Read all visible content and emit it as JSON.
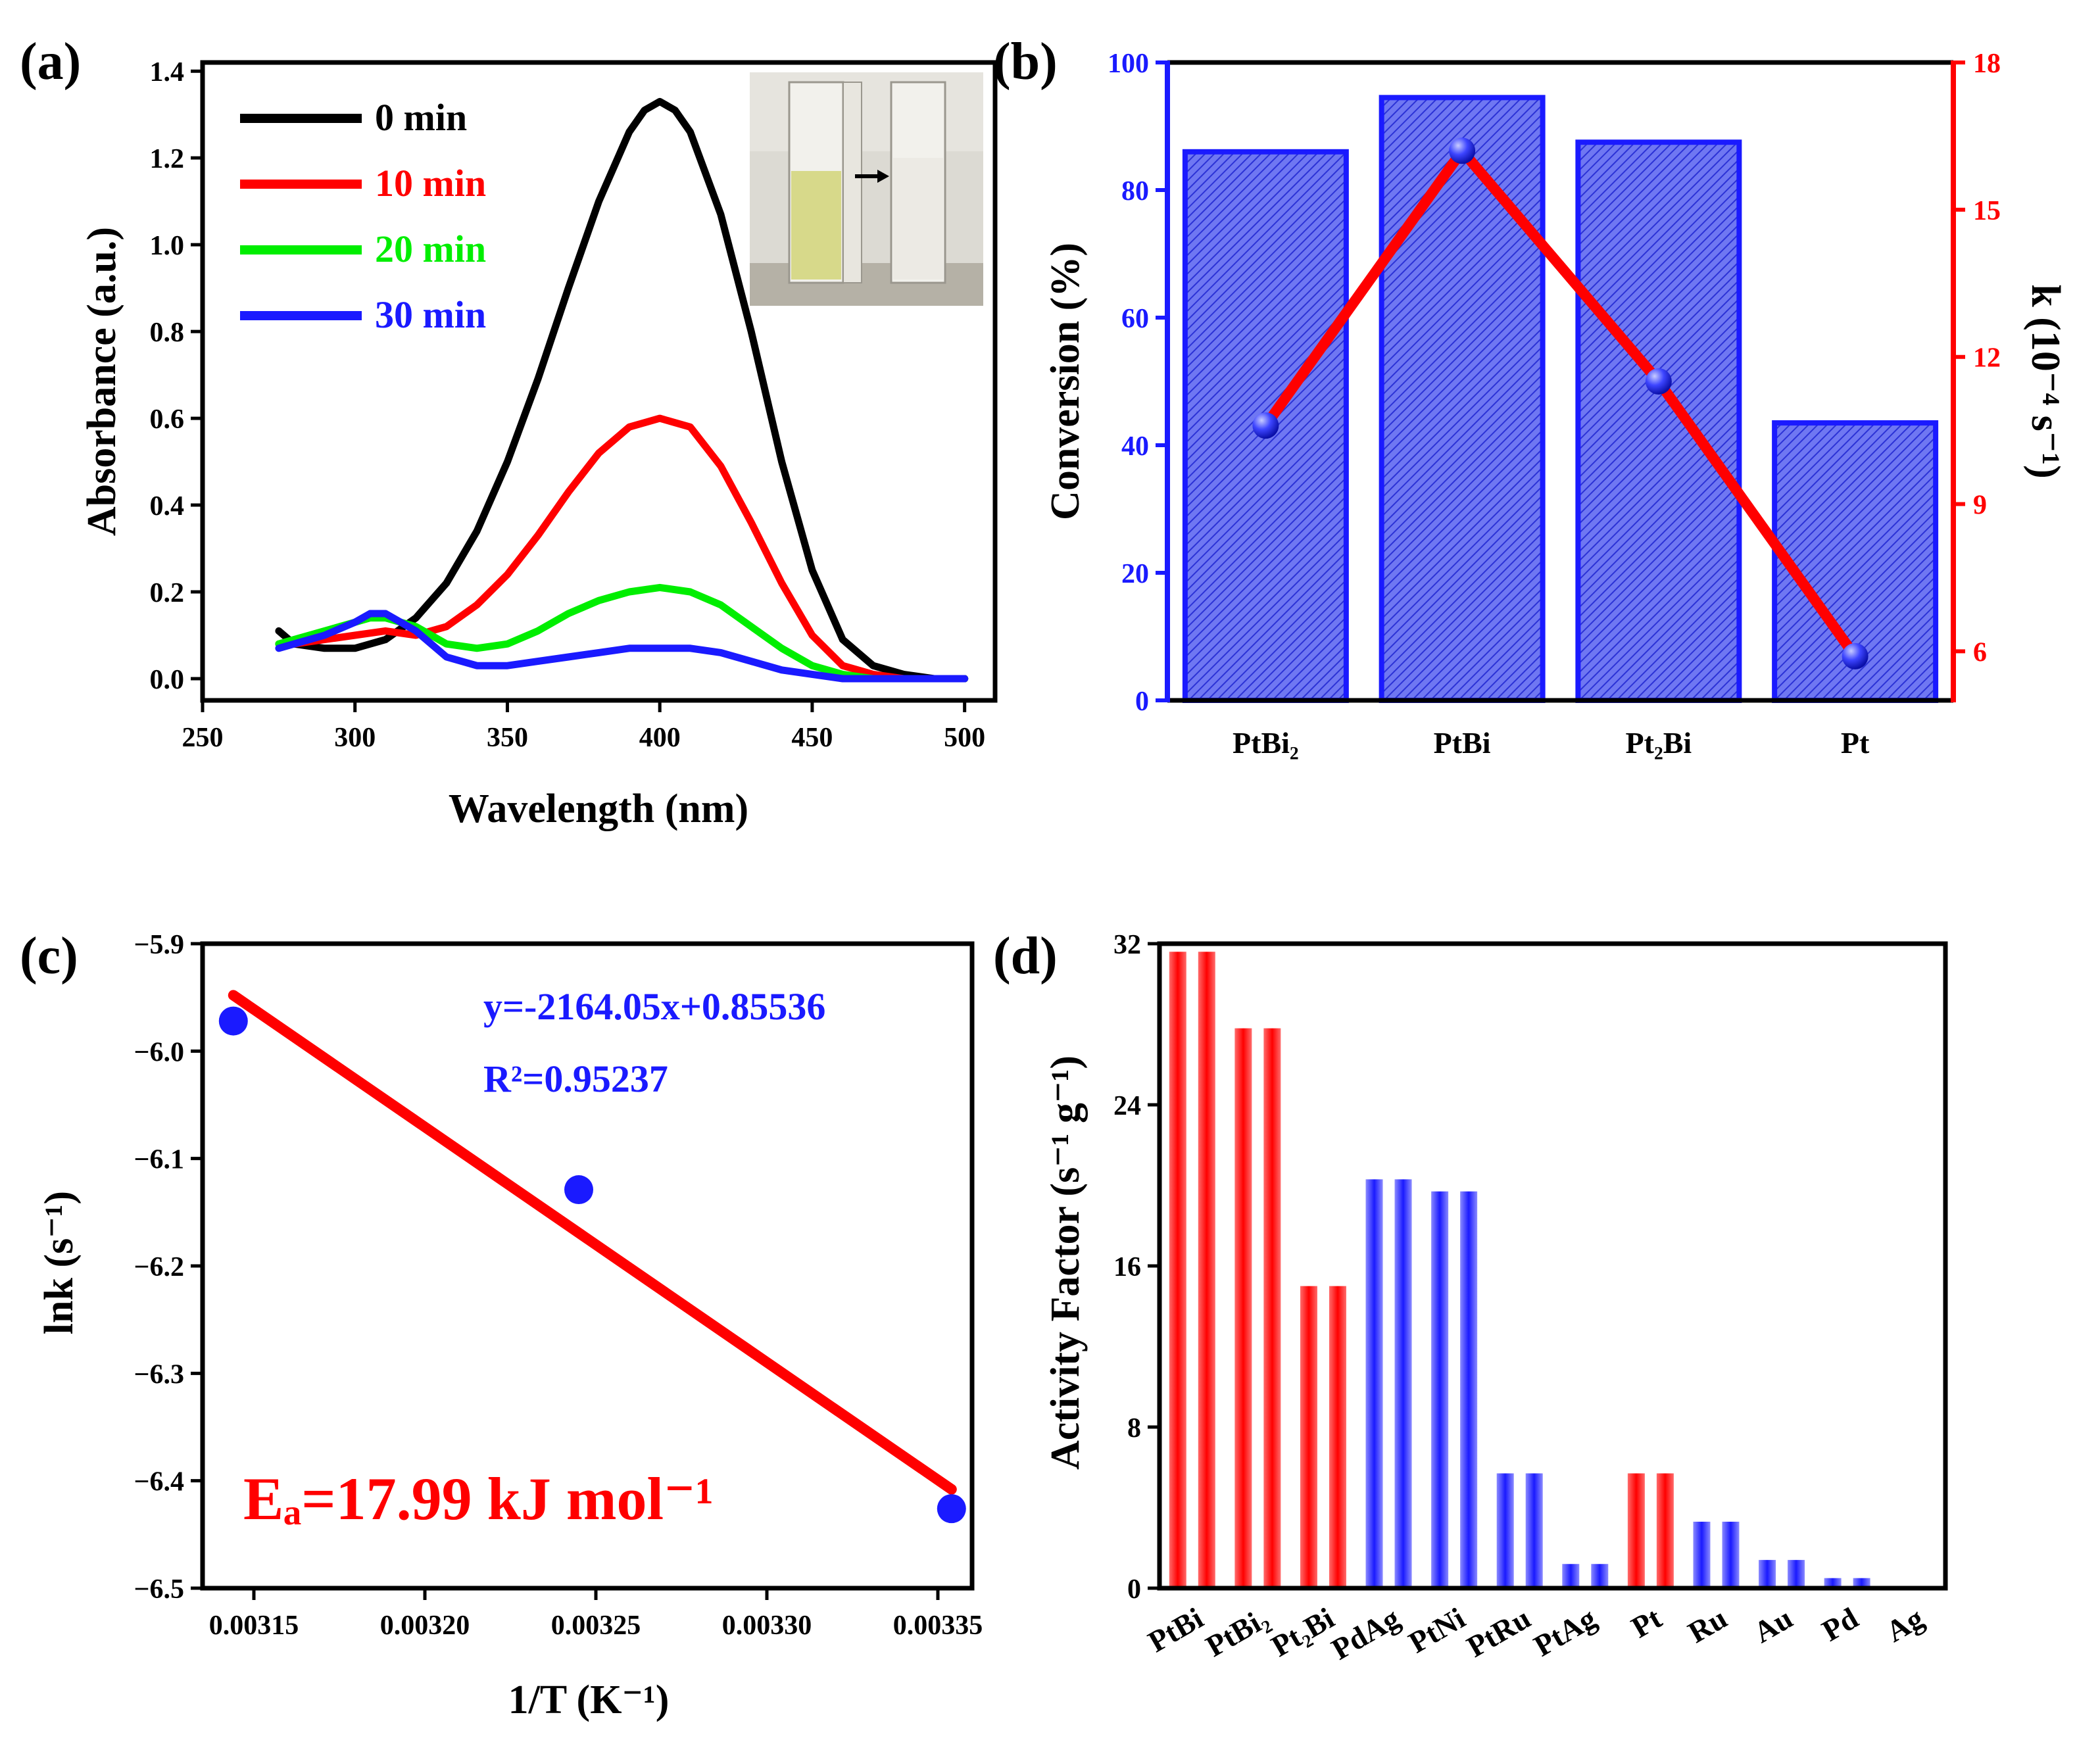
{
  "colors": {
    "black": "#000000",
    "red": "#ff0000",
    "green": "#00ee00",
    "blue": "#1a1aff",
    "bar_blue": "#4d55ee",
    "bar_edge": "#1a1aff"
  },
  "chart_data": [
    {
      "panel": "(a)",
      "type": "line",
      "xlabel": "Wavelength (nm)",
      "ylabel": "Absorbance (a.u.)",
      "xlim": [
        250,
        510
      ],
      "ylim": [
        -0.05,
        1.42
      ],
      "xticks": [
        250,
        300,
        350,
        400,
        450,
        500
      ],
      "yticks": [
        0.0,
        0.2,
        0.4,
        0.6,
        0.8,
        1.0,
        1.2,
        1.4
      ],
      "ytick_labels": [
        "0.0",
        "0.2",
        "0.4",
        "0.6",
        "0.8",
        "1.0",
        "1.2",
        "1.4"
      ],
      "inset": "photo of two cuvettes: yellow solution before, colorless after (arrow)",
      "series": [
        {
          "name": "0 min",
          "color": "#000000",
          "x": [
            275,
            280,
            290,
            300,
            310,
            320,
            330,
            340,
            350,
            360,
            370,
            380,
            390,
            395,
            400,
            405,
            410,
            420,
            430,
            440,
            450,
            460,
            470,
            480,
            490,
            500
          ],
          "y": [
            0.11,
            0.08,
            0.07,
            0.07,
            0.09,
            0.14,
            0.22,
            0.34,
            0.5,
            0.69,
            0.9,
            1.1,
            1.26,
            1.31,
            1.33,
            1.31,
            1.26,
            1.07,
            0.8,
            0.5,
            0.25,
            0.09,
            0.03,
            0.01,
            0.0,
            0.0
          ]
        },
        {
          "name": "10 min",
          "color": "#ff0000",
          "x": [
            275,
            280,
            290,
            300,
            310,
            320,
            330,
            340,
            350,
            360,
            370,
            380,
            390,
            400,
            410,
            420,
            430,
            440,
            450,
            460,
            470,
            480,
            490,
            500
          ],
          "y": [
            0.08,
            0.08,
            0.09,
            0.1,
            0.11,
            0.1,
            0.12,
            0.17,
            0.24,
            0.33,
            0.43,
            0.52,
            0.58,
            0.6,
            0.58,
            0.49,
            0.36,
            0.22,
            0.1,
            0.03,
            0.01,
            0.0,
            0.0,
            0.0
          ]
        },
        {
          "name": "20 min",
          "color": "#00ee00",
          "x": [
            275,
            280,
            290,
            300,
            305,
            310,
            320,
            330,
            340,
            350,
            360,
            370,
            380,
            390,
            400,
            410,
            420,
            430,
            440,
            450,
            460,
            470,
            480,
            490,
            500
          ],
          "y": [
            0.08,
            0.09,
            0.11,
            0.13,
            0.14,
            0.14,
            0.12,
            0.08,
            0.07,
            0.08,
            0.11,
            0.15,
            0.18,
            0.2,
            0.21,
            0.2,
            0.17,
            0.12,
            0.07,
            0.03,
            0.01,
            0.0,
            0.0,
            0.0,
            0.0
          ]
        },
        {
          "name": "30 min",
          "color": "#1a1aff",
          "x": [
            275,
            280,
            290,
            300,
            305,
            310,
            320,
            330,
            340,
            350,
            360,
            370,
            380,
            390,
            400,
            410,
            420,
            430,
            440,
            450,
            460,
            470,
            480,
            490,
            500
          ],
          "y": [
            0.07,
            0.08,
            0.1,
            0.13,
            0.15,
            0.15,
            0.11,
            0.05,
            0.03,
            0.03,
            0.04,
            0.05,
            0.06,
            0.07,
            0.07,
            0.07,
            0.06,
            0.04,
            0.02,
            0.01,
            0.0,
            0.0,
            0.0,
            0.0,
            0.0
          ]
        }
      ]
    },
    {
      "panel": "(b)",
      "type": "bar",
      "categories": [
        "PtBi₂",
        "PtBi",
        "Pt₂Bi",
        "Pt"
      ],
      "ylabel": "Conversion (%)",
      "ylabel_right": "k (10⁻⁴ s⁻¹)",
      "ylim": [
        0,
        100
      ],
      "yticks": [
        0,
        20,
        40,
        60,
        80,
        100
      ],
      "ylim_right": [
        5,
        18
      ],
      "yticks_right": [
        6,
        9,
        12,
        15,
        18
      ],
      "series": [
        {
          "name": "Conversion (%)",
          "type": "bar",
          "values": [
            86,
            94.5,
            87.5,
            43.5
          ]
        },
        {
          "name": "k (10⁻⁴ s⁻¹)",
          "type": "line",
          "values": [
            10.6,
            16.2,
            11.5,
            5.9
          ]
        }
      ]
    },
    {
      "panel": "(c)",
      "type": "scatter",
      "xlabel": "1/T (K⁻¹)",
      "ylabel": "lnk (s⁻¹)",
      "xlim": [
        0.003135,
        0.00336
      ],
      "ylim": [
        -6.5,
        -5.9
      ],
      "xticks": [
        0.00315,
        0.0032,
        0.00325,
        0.0033,
        0.00335
      ],
      "xtick_labels": [
        "0.00315",
        "0.00320",
        "0.00325",
        "0.00330",
        "0.00335"
      ],
      "yticks": [
        -6.5,
        -6.4,
        -6.3,
        -6.2,
        -6.1,
        -6.0,
        -5.9
      ],
      "ytick_labels": [
        "−6.5",
        "−6.4",
        "−6.3",
        "−6.2",
        "−6.1",
        "−6.0",
        "−5.9"
      ],
      "points": {
        "x": [
          0.003144,
          0.003245,
          0.003354
        ],
        "y": [
          -5.972,
          -6.129,
          -6.426
        ]
      },
      "fit": {
        "x": [
          0.003144,
          0.003354
        ],
        "y": [
          -5.948,
          -6.408
        ]
      },
      "equation": "y=-2164.05x+0.85536",
      "r2_text": "R²=0.95237",
      "ea_text": "Eₐ=17.99 kJ mol⁻¹"
    },
    {
      "panel": "(d)",
      "type": "bar",
      "categories": [
        "PtBi",
        "PtBi₂",
        "Pt₂Bi",
        "PdAg",
        "PtNi",
        "PtRu",
        "PtAg",
        "Pt",
        "Ru",
        "Au",
        "Pd",
        "Ag"
      ],
      "ylabel": "Activity Factor (s⁻¹ g⁻¹)",
      "ylim": [
        0,
        32
      ],
      "yticks": [
        0,
        8,
        16,
        24,
        32
      ],
      "values": [
        31.6,
        27.8,
        15.0,
        20.3,
        19.7,
        5.7,
        1.2,
        5.7,
        3.3,
        1.4,
        0.5,
        0.0
      ],
      "bar_colors": [
        "#ff0000",
        "#ff0000",
        "#ff0000",
        "#1a1aff",
        "#1a1aff",
        "#1a1aff",
        "#1a1aff",
        "#ff0000",
        "#1a1aff",
        "#1a1aff",
        "#1a1aff",
        "#1a1aff"
      ]
    }
  ]
}
